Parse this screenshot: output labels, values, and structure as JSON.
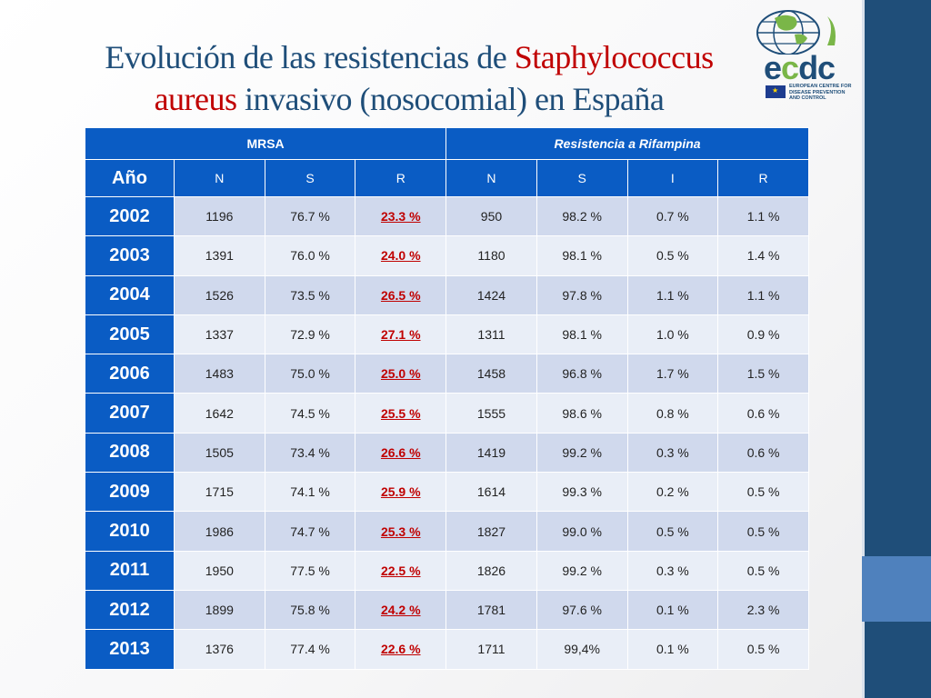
{
  "title": {
    "part1": "Evolución de las resistencias de ",
    "organism1": "Staphylococcus",
    "organism2": "aureus",
    "part2": " invasivo (nosocomial) en España"
  },
  "logo": {
    "wordmark_prefix": "e",
    "wordmark_mid": "c",
    "wordmark_suffix": "dc",
    "org_line1": "EUROPEAN CENTRE FOR",
    "org_line2": "DISEASE PREVENTION",
    "org_line3": "AND CONTROL"
  },
  "table": {
    "group_mrsa": "MRSA",
    "group_rif": "Resistencia a Rifampina",
    "headers": [
      "Año",
      "N",
      "S",
      "R",
      "N",
      "S",
      "I",
      "R"
    ],
    "rows": [
      {
        "year": "2002",
        "mrsa_n": "1196",
        "mrsa_s": "76.7 %",
        "mrsa_r": "23.3 %",
        "rif_n": "950",
        "rif_s": "98.2 %",
        "rif_i": "0.7 %",
        "rif_r": "1.1 %"
      },
      {
        "year": "2003",
        "mrsa_n": "1391",
        "mrsa_s": "76.0 %",
        "mrsa_r": "24.0 %",
        "rif_n": "1180",
        "rif_s": "98.1 %",
        "rif_i": "0.5 %",
        "rif_r": "1.4 %"
      },
      {
        "year": "2004",
        "mrsa_n": "1526",
        "mrsa_s": "73.5 %",
        "mrsa_r": "26.5 %",
        "rif_n": "1424",
        "rif_s": "97.8 %",
        "rif_i": "1.1 %",
        "rif_r": "1.1 %"
      },
      {
        "year": "2005",
        "mrsa_n": "1337",
        "mrsa_s": "72.9 %",
        "mrsa_r": "27.1 %",
        "rif_n": "1311",
        "rif_s": "98.1 %",
        "rif_i": "1.0 %",
        "rif_r": "0.9 %"
      },
      {
        "year": "2006",
        "mrsa_n": "1483",
        "mrsa_s": "75.0 %",
        "mrsa_r": "25.0 %",
        "rif_n": "1458",
        "rif_s": "96.8 %",
        "rif_i": "1.7 %",
        "rif_r": "1.5 %"
      },
      {
        "year": "2007",
        "mrsa_n": "1642",
        "mrsa_s": "74.5 %",
        "mrsa_r": "25.5 %",
        "rif_n": "1555",
        "rif_s": "98.6 %",
        "rif_i": "0.8 %",
        "rif_r": "0.6 %"
      },
      {
        "year": "2008",
        "mrsa_n": "1505",
        "mrsa_s": "73.4 %",
        "mrsa_r": "26.6 %",
        "rif_n": "1419",
        "rif_s": "99.2 %",
        "rif_i": "0.3 %",
        "rif_r": "0.6 %"
      },
      {
        "year": "2009",
        "mrsa_n": "1715",
        "mrsa_s": "74.1 %",
        "mrsa_r": "25.9 %",
        "rif_n": "1614",
        "rif_s": "99.3 %",
        "rif_i": "0.2 %",
        "rif_r": "0.5 %"
      },
      {
        "year": "2010",
        "mrsa_n": "1986",
        "mrsa_s": "74.7 %",
        "mrsa_r": "25.3 %",
        "rif_n": "1827",
        "rif_s": "99.0 %",
        "rif_i": "0.5 %",
        "rif_r": "0.5 %"
      },
      {
        "year": "2011",
        "mrsa_n": "1950",
        "mrsa_s": "77.5 %",
        "mrsa_r": "22.5 %",
        "rif_n": "1826",
        "rif_s": "99.2 %",
        "rif_i": "0.3 %",
        "rif_r": "0.5 %"
      },
      {
        "year": "2012",
        "mrsa_n": "1899",
        "mrsa_s": "75.8 %",
        "mrsa_r": "24.2 %",
        "rif_n": "1781",
        "rif_s": "97.6 %",
        "rif_i": "0.1 %",
        "rif_r": "2.3 %"
      },
      {
        "year": "2013",
        "mrsa_n": "1376",
        "mrsa_s": "77.4 %",
        "mrsa_r": "22.6 %",
        "rif_n": "1711",
        "rif_s": "99,4%",
        "rif_i": "0.1 %",
        "rif_r": "0.5 %"
      }
    ]
  },
  "colors": {
    "title_blue": "#1f4e79",
    "title_red": "#c00000",
    "header_blue": "#0a5cc4",
    "row_band_dark": "#d0d9ed",
    "row_band_light": "#e9eef7",
    "highlight_red": "#c00000",
    "sidebar_dark": "#1f4e79",
    "sidebar_light": "#4f81bd"
  }
}
